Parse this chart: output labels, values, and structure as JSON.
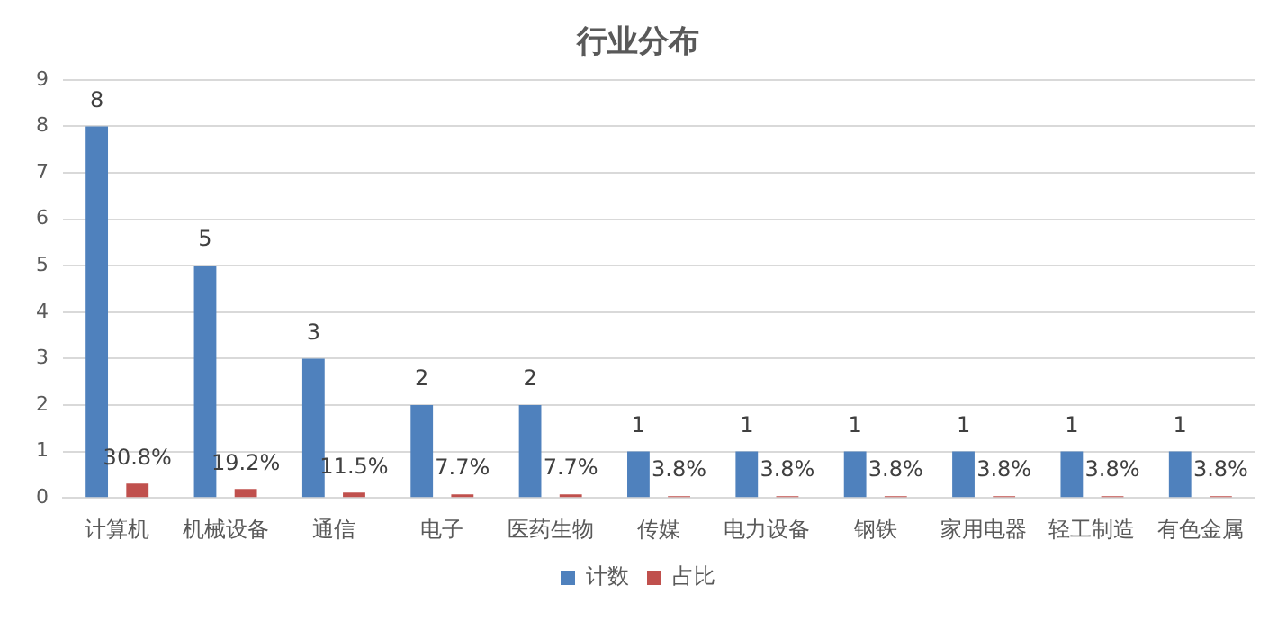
{
  "chart_data": {
    "type": "bar",
    "title": "行业分布",
    "categories": [
      "计算机",
      "机械设备",
      "通信",
      "电子",
      "医药生物",
      "传媒",
      "电力设备",
      "钢铁",
      "家用电器",
      "轻工制造",
      "有色金属"
    ],
    "series": [
      {
        "name": "计数",
        "color": "#4f81bd",
        "values": [
          8,
          5,
          3,
          2,
          2,
          1,
          1,
          1,
          1,
          1,
          1
        ],
        "value_labels": [
          "8",
          "5",
          "3",
          "2",
          "2",
          "1",
          "1",
          "1",
          "1",
          "1",
          "1"
        ]
      },
      {
        "name": "占比",
        "color": "#c0504d",
        "values": [
          0.308,
          0.192,
          0.115,
          0.077,
          0.077,
          0.038,
          0.038,
          0.038,
          0.038,
          0.038,
          0.038
        ],
        "value_labels": [
          "30.8%",
          "19.2%",
          "11.5%",
          "7.7%",
          "7.7%",
          "3.8%",
          "3.8%",
          "3.8%",
          "3.8%",
          "3.8%",
          "3.8%"
        ]
      }
    ],
    "ylim": [
      0,
      9
    ],
    "yticks": [
      0,
      1,
      2,
      3,
      4,
      5,
      6,
      7,
      8,
      9
    ],
    "grid": "y",
    "legend": "bottom"
  }
}
